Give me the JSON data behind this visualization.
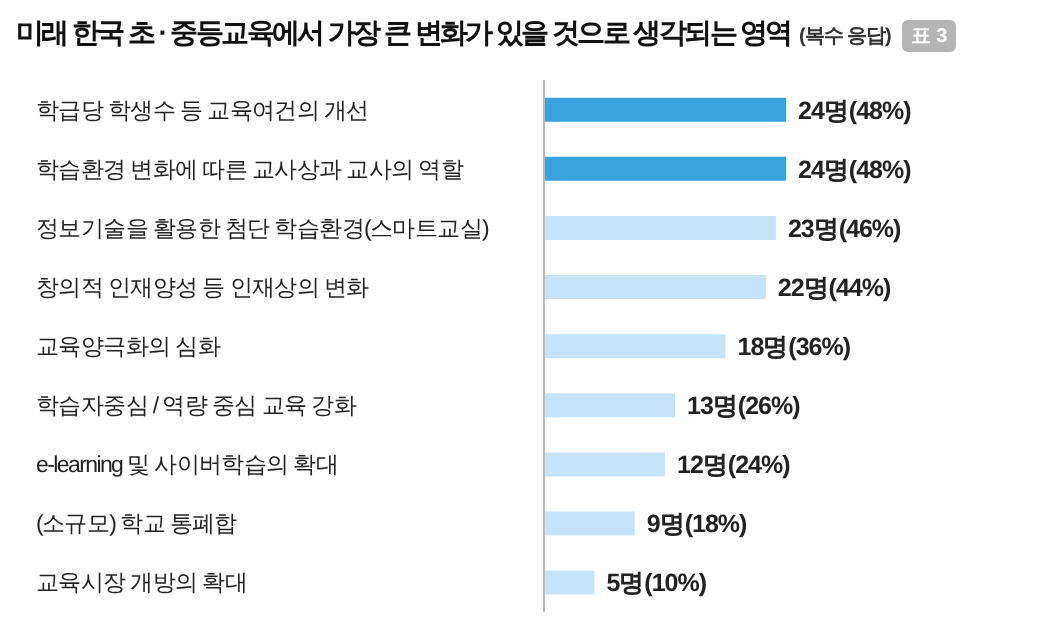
{
  "chart_data": {
    "type": "bar",
    "orientation": "horizontal",
    "title": "미래 한국 초 · 중등교육에서 가장 큰 변화가 있을 것으로 생각되는 영역",
    "subtitle": "(복수 응답)",
    "annotations": [
      "표 3"
    ],
    "categories": [
      "학급당 학생수 등 교육여건의 개선",
      "학습환경 변화에 따른 교사상과 교사의 역할",
      "정보기술을 활용한 첨단 학습환경(스마트교실)",
      "창의적 인재양성 등 인재상의 변화",
      "교육양극화의 심화",
      "학습자중심 / 역량 중심 교육 강화",
      "e-learning 및 사이버학습의 확대",
      "(소규모) 학교 통폐합",
      "교육시장 개방의 확대"
    ],
    "values": [
      24,
      24,
      23,
      22,
      18,
      13,
      12,
      9,
      5
    ],
    "colors": [
      "#3aa2dc",
      "#3aa2dc",
      "#c6e4f7",
      "#c6e4f7",
      "#c6e4f7",
      "#c6e4f7",
      "#c6e4f7",
      "#c6e4f7",
      "#c6e4f7"
    ],
    "value_labels": [
      "24명(48%)",
      "24명(48%)",
      "23명(46%)",
      "22명(44%)",
      "18명(36%)",
      "13명(26%)",
      "12명(24%)",
      "9명(18%)",
      "5명(10%)"
    ]
  }
}
